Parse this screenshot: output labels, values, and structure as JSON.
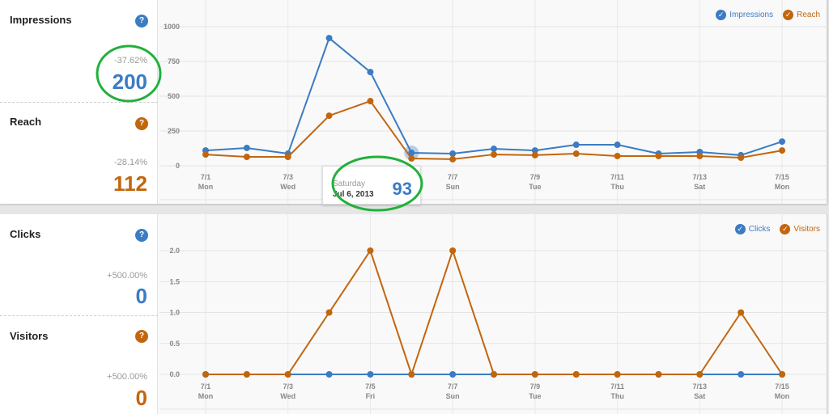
{
  "colors": {
    "blue": "#3b7cc3",
    "orange": "#c2660e",
    "annotation": "#22b03c"
  },
  "panels": [
    {
      "metrics": [
        {
          "name": "Impressions",
          "help": "?",
          "change": "-37.62%",
          "value": "200",
          "color": "#3b7cc3"
        },
        {
          "name": "Reach",
          "help": "?",
          "change": "-28.14%",
          "value": "112",
          "color": "#c2660e"
        }
      ],
      "legend": [
        {
          "label": "Impressions",
          "icon": "check-icon",
          "color": "#3b7cc3"
        },
        {
          "label": "Reach",
          "icon": "check-icon",
          "color": "#c2660e"
        }
      ]
    },
    {
      "metrics": [
        {
          "name": "Clicks",
          "help": "?",
          "change": "+500.00%",
          "value": "0",
          "color": "#3b7cc3"
        },
        {
          "name": "Visitors",
          "help": "?",
          "change": "+500.00%",
          "value": "0",
          "color": "#c2660e"
        }
      ],
      "legend": [
        {
          "label": "Clicks",
          "icon": "check-icon",
          "color": "#3b7cc3"
        },
        {
          "label": "Visitors",
          "icon": "check-icon",
          "color": "#c2660e"
        }
      ]
    }
  ],
  "tooltip": {
    "day": "Saturday",
    "date": "Jul 6, 2013",
    "value": "93"
  },
  "chart_data": [
    {
      "type": "line",
      "x": [
        "7/1",
        "7/2",
        "7/3",
        "7/4",
        "7/5",
        "7/6",
        "7/7",
        "7/8",
        "7/9",
        "7/10",
        "7/11",
        "7/12",
        "7/13",
        "7/14",
        "7/15"
      ],
      "xtick_labels": [
        [
          "7/1",
          "Mon"
        ],
        [
          "7/3",
          "Wed"
        ],
        [
          "7/7",
          "Sun"
        ],
        [
          "7/9",
          "Tue"
        ],
        [
          "7/11",
          "Thu"
        ],
        [
          "7/13",
          "Sat"
        ],
        [
          "7/15",
          "Mon"
        ]
      ],
      "xtick_index": [
        0,
        2,
        6,
        8,
        10,
        12,
        14
      ],
      "yticks": [
        "0",
        "250",
        "500",
        "750",
        "1000"
      ],
      "ylim": [
        0,
        1000
      ],
      "grid": true,
      "legend": "top-right",
      "series": [
        {
          "name": "Impressions",
          "color": "#3b7cc3",
          "values": [
            110,
            128,
            87,
            918,
            674,
            93,
            87,
            122,
            110,
            151,
            151,
            87,
            99,
            76,
            174
          ]
        },
        {
          "name": "Reach",
          "color": "#c2660e",
          "values": [
            81,
            64,
            64,
            360,
            465,
            52,
            47,
            81,
            76,
            87,
            70,
            70,
            70,
            58,
            110
          ]
        }
      ]
    },
    {
      "type": "line",
      "x": [
        "7/1",
        "7/2",
        "7/3",
        "7/4",
        "7/5",
        "7/6",
        "7/7",
        "7/8",
        "7/9",
        "7/10",
        "7/11",
        "7/12",
        "7/13",
        "7/14",
        "7/15"
      ],
      "xtick_labels": [
        [
          "7/1",
          "Mon"
        ],
        [
          "7/3",
          "Wed"
        ],
        [
          "7/5",
          "Fri"
        ],
        [
          "7/7",
          "Sun"
        ],
        [
          "7/9",
          "Tue"
        ],
        [
          "7/11",
          "Thu"
        ],
        [
          "7/13",
          "Sat"
        ],
        [
          "7/15",
          "Mon"
        ]
      ],
      "xtick_index": [
        0,
        2,
        4,
        6,
        8,
        10,
        12,
        14
      ],
      "yticks": [
        "0.0",
        "0.5",
        "1.0",
        "1.5",
        "2.0"
      ],
      "ylim": [
        0,
        2
      ],
      "grid": true,
      "legend": "top-right",
      "series": [
        {
          "name": "Clicks",
          "color": "#3b7cc3",
          "values": [
            0,
            0,
            0,
            0,
            0,
            0,
            0,
            0,
            0,
            0,
            0,
            0,
            0,
            0,
            0
          ]
        },
        {
          "name": "Visitors",
          "color": "#c2660e",
          "values": [
            0,
            0,
            0,
            1,
            2,
            0,
            2,
            0,
            0,
            0,
            0,
            0,
            0,
            1,
            0
          ]
        }
      ]
    }
  ]
}
